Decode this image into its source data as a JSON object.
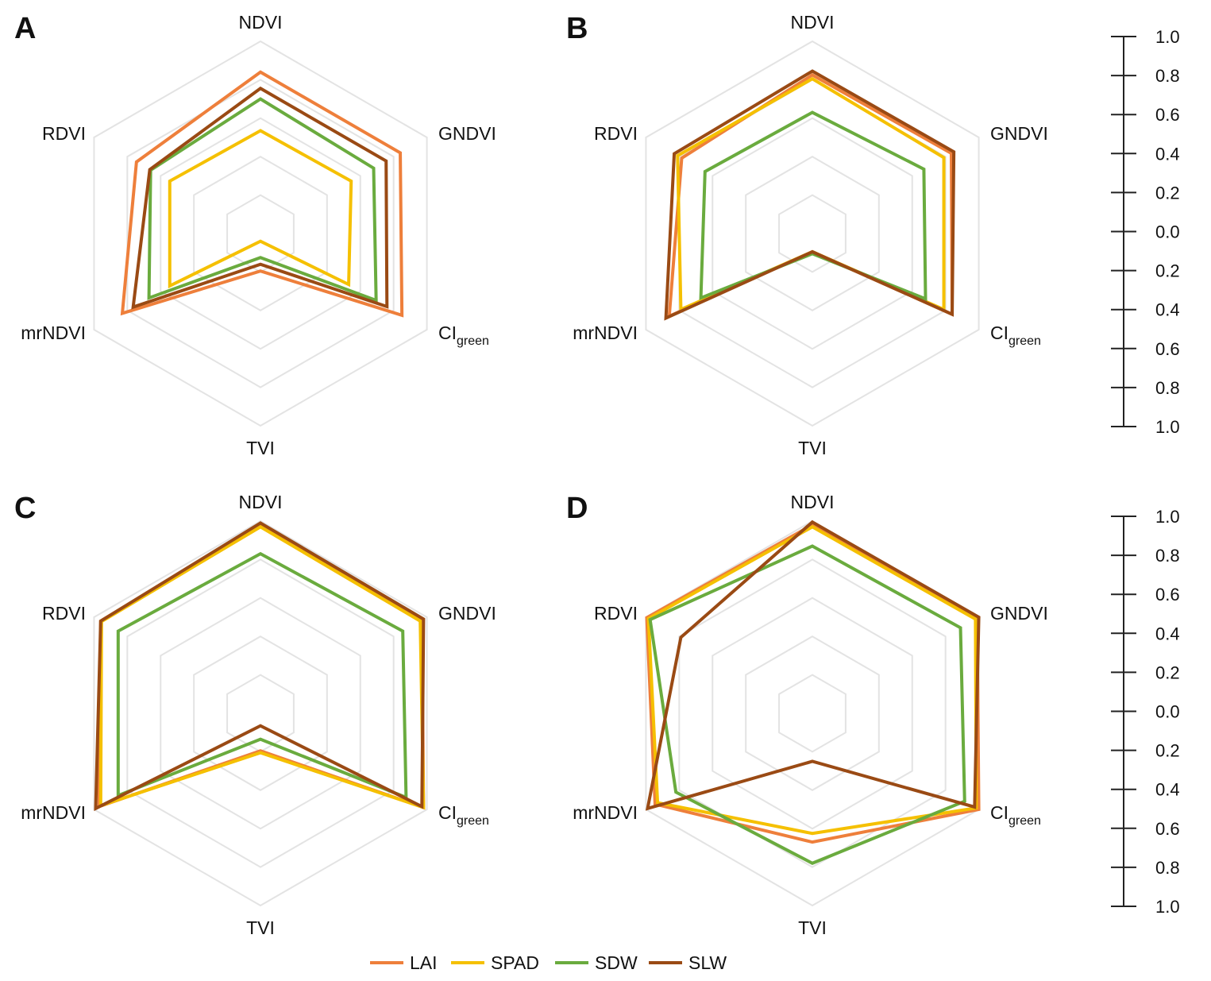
{
  "colors": {
    "LAI": "#ee7f3b",
    "SPAD": "#f5c000",
    "SDW": "#6aab3e",
    "SLW": "#9a4a14",
    "grid": "#e3e3e3",
    "scale": "#222222"
  },
  "chart_data": [
    {
      "type": "radar",
      "panel": "A",
      "axes": [
        "NDVI",
        "GNDVI",
        "CIgreen",
        "TVI",
        "mrNDVI",
        "RDVI"
      ],
      "axis_labels": [
        {
          "main": "NDVI",
          "sub": ""
        },
        {
          "main": "GNDVI",
          "sub": ""
        },
        {
          "main": "CI",
          "sub": "green"
        },
        {
          "main": "TVI",
          "sub": ""
        },
        {
          "main": "mrNDVI",
          "sub": ""
        },
        {
          "main": "RDVI",
          "sub": ""
        }
      ],
      "scale_steps": 5,
      "series": [
        {
          "name": "LAI",
          "values": [
            0.68,
            0.68,
            0.7,
            -0.61,
            0.66,
            0.49
          ]
        },
        {
          "name": "SPAD",
          "values": [
            0.07,
            0.09,
            0.06,
            -0.92,
            0.09,
            0.09
          ]
        },
        {
          "name": "SDW",
          "values": [
            0.4,
            0.36,
            0.39,
            -0.75,
            0.34,
            0.32
          ]
        },
        {
          "name": "SLW",
          "values": [
            0.51,
            0.51,
            0.52,
            -0.68,
            0.53,
            0.33
          ]
        }
      ]
    },
    {
      "type": "radar",
      "panel": "B",
      "axes": [
        "NDVI",
        "GNDVI",
        "CIgreen",
        "TVI",
        "mrNDVI",
        "RDVI"
      ],
      "axis_labels": [
        {
          "main": "NDVI",
          "sub": ""
        },
        {
          "main": "GNDVI",
          "sub": ""
        },
        {
          "main": "CI",
          "sub": "green"
        },
        {
          "main": "TVI",
          "sub": ""
        },
        {
          "main": "mrNDVI",
          "sub": ""
        },
        {
          "main": "RDVI",
          "sub": ""
        }
      ],
      "scale_steps": 5,
      "series": [
        {
          "name": "LAI",
          "values": [
            0.65,
            0.67,
            0.68,
            -0.81,
            0.72,
            0.57
          ]
        },
        {
          "name": "SPAD",
          "values": [
            0.61,
            0.58,
            0.58,
            -0.81,
            0.58,
            0.62
          ]
        },
        {
          "name": "SDW",
          "values": [
            0.26,
            0.34,
            0.36,
            -0.79,
            0.34,
            0.29
          ]
        },
        {
          "name": "SLW",
          "values": [
            0.69,
            0.7,
            0.68,
            -0.81,
            0.76,
            0.66
          ]
        }
      ]
    },
    {
      "type": "radar",
      "panel": "C",
      "axes": [
        "NDVI",
        "GNDVI",
        "CIgreen",
        "TVI",
        "mrNDVI",
        "RDVI"
      ],
      "axis_labels": [
        {
          "main": "NDVI",
          "sub": ""
        },
        {
          "main": "GNDVI",
          "sub": ""
        },
        {
          "main": "CI",
          "sub": "green"
        },
        {
          "main": "TVI",
          "sub": ""
        },
        {
          "main": "mrNDVI",
          "sub": ""
        },
        {
          "main": "RDVI",
          "sub": ""
        }
      ],
      "scale_steps": 5,
      "series": [
        {
          "name": "LAI",
          "values": [
            0.96,
            0.94,
            0.96,
            -0.61,
            0.94,
            0.92
          ]
        },
        {
          "name": "SPAD",
          "values": [
            0.94,
            0.92,
            0.96,
            -0.59,
            0.92,
            0.91
          ]
        },
        {
          "name": "SDW",
          "values": [
            0.66,
            0.71,
            0.75,
            -0.73,
            0.71,
            0.71
          ]
        },
        {
          "name": "SLW",
          "values": [
            0.98,
            0.96,
            0.94,
            -0.87,
            0.98,
            0.92
          ]
        }
      ]
    },
    {
      "type": "radar",
      "panel": "D",
      "axes": [
        "NDVI",
        "GNDVI",
        "CIgreen",
        "TVI",
        "mrNDVI",
        "RDVI"
      ],
      "axis_labels": [
        {
          "main": "NDVI",
          "sub": ""
        },
        {
          "main": "GNDVI",
          "sub": ""
        },
        {
          "main": "CI",
          "sub": "green"
        },
        {
          "main": "TVI",
          "sub": ""
        },
        {
          "main": "mrNDVI",
          "sub": ""
        },
        {
          "main": "RDVI",
          "sub": ""
        }
      ],
      "scale_steps": 5,
      "series": [
        {
          "name": "LAI",
          "values": [
            0.96,
            0.98,
            1.0,
            0.34,
            0.89,
            0.99
          ]
        },
        {
          "name": "SPAD",
          "values": [
            0.94,
            0.96,
            0.97,
            0.25,
            0.86,
            0.97
          ]
        },
        {
          "name": "SDW",
          "values": [
            0.74,
            0.78,
            0.83,
            0.56,
            0.64,
            0.95
          ]
        },
        {
          "name": "SLW",
          "values": [
            0.99,
            1.0,
            0.95,
            -0.5,
            0.98,
            0.58
          ]
        }
      ]
    }
  ],
  "scale_bar": {
    "labels": [
      "1.0",
      "0.8",
      "0.6",
      "0.4",
      "0.2",
      "0.0",
      "0.2",
      "0.4",
      "0.6",
      "0.8",
      "1.0"
    ]
  },
  "legend": [
    "LAI",
    "SPAD",
    "SDW",
    "SLW"
  ]
}
